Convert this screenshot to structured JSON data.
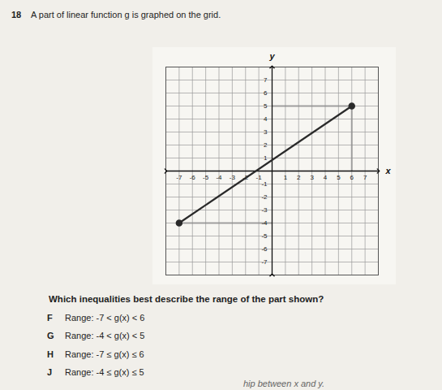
{
  "question": {
    "number": "18",
    "text": "A part of linear function g is graphed on the grid."
  },
  "chart_data": {
    "type": "line",
    "x": [
      -7,
      6
    ],
    "values": [
      -4,
      5
    ],
    "color": "#2a2a2a",
    "marker": "circle",
    "xlabel": "x",
    "ylabel": "y",
    "xlim": [
      -8,
      8
    ],
    "ylim": [
      -8,
      8
    ],
    "xticks": [
      -7,
      -6,
      -5,
      -4,
      -3,
      -2,
      -1,
      1,
      2,
      3,
      4,
      5,
      6,
      7
    ],
    "yticks": [
      -7,
      -6,
      -5,
      -4,
      -3,
      -2,
      -1,
      1,
      2,
      3,
      4,
      5,
      6,
      7
    ],
    "grid": true
  },
  "prompt": "Which inequalities best describe the range of the part shown?",
  "options": [
    {
      "letter": "F",
      "text": "Range: -7 < g(x) < 6"
    },
    {
      "letter": "G",
      "text": "Range: -4 < g(x) < 5"
    },
    {
      "letter": "H",
      "text": "Range: -7 ≤ g(x) ≤ 6"
    },
    {
      "letter": "J",
      "text": "Range: -4 ≤ g(x) ≤ 5"
    }
  ],
  "footer": "hip between x and y."
}
